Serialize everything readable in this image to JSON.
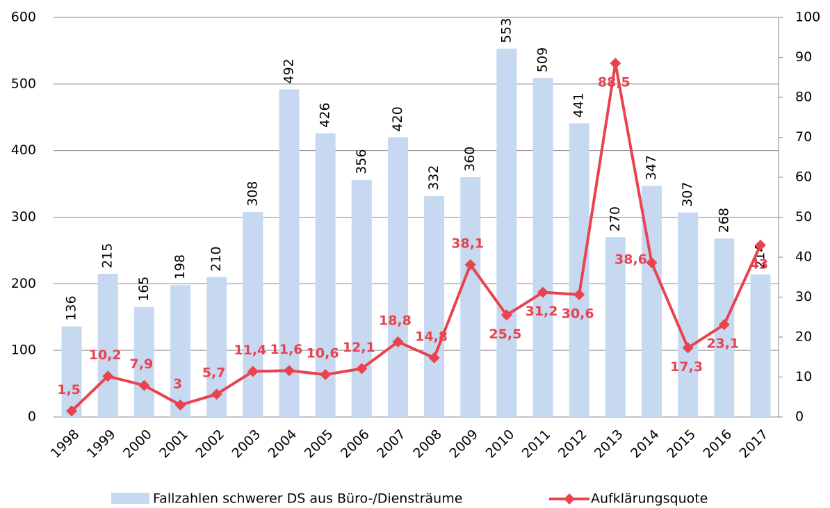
{
  "chart_data": {
    "type": "combo",
    "categories": [
      "1998",
      "1999",
      "2000",
      "2001",
      "2002",
      "2003",
      "2004",
      "2005",
      "2006",
      "2007",
      "2008",
      "2009",
      "2010",
      "2011",
      "2012",
      "2013",
      "2014",
      "2015",
      "2016",
      "2017"
    ],
    "series": [
      {
        "name": "Fallzahlen schwerer DS aus Büro-/Diensträume",
        "type": "bar",
        "color": "#c6d9f1",
        "values": [
          136,
          215,
          165,
          198,
          210,
          308,
          492,
          426,
          356,
          420,
          332,
          360,
          553,
          509,
          441,
          270,
          347,
          307,
          268,
          214
        ]
      },
      {
        "name": "Aufklärungsquote",
        "type": "line",
        "color": "#e8434e",
        "axis": "y2",
        "values": [
          1.5,
          10.2,
          7.9,
          3,
          5.7,
          11.4,
          11.6,
          10.6,
          12.1,
          18.8,
          14.8,
          38.1,
          25.5,
          31.2,
          30.6,
          88.5,
          38.6,
          17.3,
          23.1,
          43
        ],
        "value_labels": [
          "1,5",
          "10,2",
          "7,9",
          "3",
          "5,7",
          "11,4",
          "11,6",
          "10,6",
          "12,1",
          "18,8",
          "14,8",
          "38,1",
          "25,5",
          "31,2",
          "30,6",
          "88,5",
          "38,6",
          "17,3",
          "23,1",
          "43"
        ]
      }
    ],
    "ylim": [
      0,
      600
    ],
    "yticks": [
      0,
      100,
      200,
      300,
      400,
      500,
      600
    ],
    "y2lim": [
      0,
      100
    ],
    "y2ticks": [
      0,
      10,
      20,
      30,
      40,
      50,
      60,
      70,
      80,
      90,
      100
    ],
    "grid": true,
    "legend": "bottom"
  }
}
